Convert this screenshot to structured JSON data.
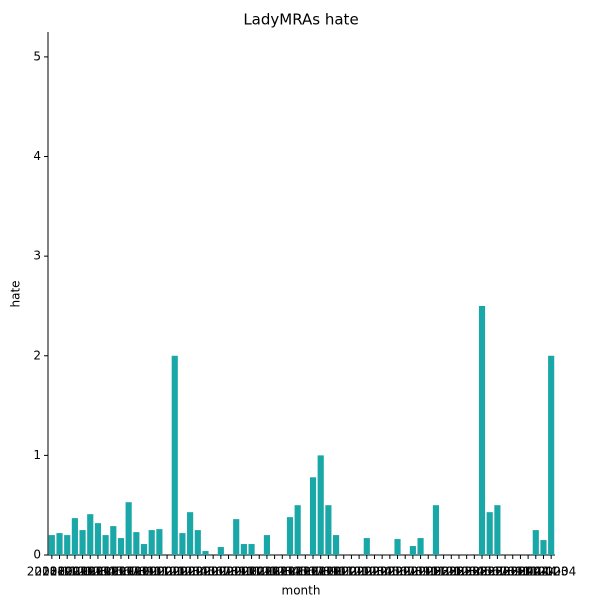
{
  "chart_data": {
    "type": "bar",
    "title": "LadyMRAs hate",
    "x_label": "month",
    "y_label": "hate",
    "color": "#1aa7a8",
    "categories": [
      "2018-11",
      "2018-12",
      "2019-01",
      "2019-02",
      "2019-03",
      "2019-04",
      "2019-05",
      "2019-06",
      "2019-07",
      "2019-08",
      "2019-09",
      "2019-10",
      "2019-11",
      "2019-12",
      "2020-01",
      "2020-02",
      "2020-03",
      "2020-04",
      "2020-05",
      "2020-06",
      "2020-07",
      "2020-08",
      "2020-09",
      "2020-10",
      "2020-11",
      "2020-12",
      "2021-01",
      "2021-02",
      "2021-03",
      "2021-04",
      "2021-05",
      "2021-06",
      "2021-07",
      "2021-08",
      "2021-09",
      "2021-10",
      "2021-11",
      "2021-12",
      "2022-01",
      "2022-02",
      "2022-03",
      "2022-04",
      "2022-05",
      "2022-06",
      "2022-07",
      "2022-08",
      "2022-09",
      "2022-10",
      "2022-11",
      "2022-12",
      "2023-01",
      "2023-02",
      "2023-03",
      "2023-04",
      "2023-05",
      "2023-06",
      "2023-07",
      "2023-08",
      "2023-09",
      "2023-10",
      "2023-11",
      "2023-12",
      "2024-01",
      "2024-02",
      "2024-03",
      "2024-04"
    ],
    "values": [
      0.2,
      0.22,
      0.2,
      0.37,
      0.25,
      0.41,
      0.32,
      0.2,
      0.29,
      0.17,
      0.53,
      0.23,
      0.11,
      0.25,
      0.26,
      0,
      2.0,
      0.22,
      0.43,
      0.25,
      0.04,
      0,
      0.08,
      0,
      0.36,
      0.11,
      0.11,
      0,
      0.2,
      0,
      0,
      0.38,
      0.5,
      0,
      0.78,
      1.0,
      0.5,
      0.2,
      0,
      0,
      0,
      0.17,
      0,
      0,
      0,
      0.16,
      0,
      0.09,
      0.17,
      0,
      0.5,
      0,
      0,
      0,
      0,
      0,
      2.5,
      0.43,
      0.5,
      0,
      0,
      0,
      0,
      0.25,
      0.15,
      2.0
    ],
    "ylim": [
      0,
      5.25
    ],
    "yticks": [
      0,
      1,
      2,
      3,
      4,
      5
    ]
  }
}
